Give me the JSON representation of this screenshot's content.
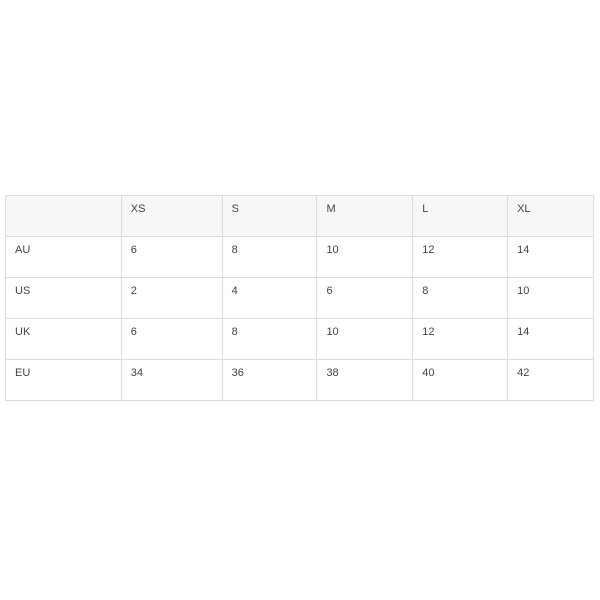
{
  "size_chart": {
    "header": [
      "",
      "XS",
      "S",
      "M",
      "L",
      "XL"
    ],
    "rows": [
      [
        "AU",
        "6",
        "8",
        "10",
        "12",
        "14"
      ],
      [
        "US",
        "2",
        "4",
        "6",
        "8",
        "10"
      ],
      [
        "UK",
        "6",
        "8",
        "10",
        "12",
        "14"
      ],
      [
        "EU",
        "34",
        "36",
        "38",
        "40",
        "42"
      ]
    ]
  }
}
